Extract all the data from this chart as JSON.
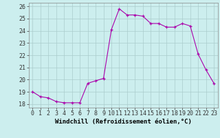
{
  "x": [
    0,
    1,
    2,
    3,
    4,
    5,
    6,
    7,
    8,
    9,
    10,
    11,
    12,
    13,
    14,
    15,
    16,
    17,
    18,
    19,
    20,
    21,
    22,
    23
  ],
  "y": [
    19.0,
    18.6,
    18.5,
    18.2,
    18.1,
    18.1,
    18.1,
    19.7,
    19.9,
    20.1,
    24.1,
    25.8,
    25.3,
    25.3,
    25.2,
    24.6,
    24.6,
    24.3,
    24.3,
    24.6,
    24.4,
    22.1,
    20.8,
    19.7
  ],
  "line_color": "#aa00aa",
  "marker_color": "#aa00aa",
  "bg_color": "#cceeee",
  "grid_color": "#aacccc",
  "xlabel": "Windchill (Refroidissement éolien,°C)",
  "ylabel_ticks": [
    18,
    19,
    20,
    21,
    22,
    23,
    24,
    25,
    26
  ],
  "xlim": [
    -0.5,
    23.5
  ],
  "ylim": [
    17.7,
    26.3
  ],
  "xlabel_fontsize": 6.5,
  "tick_fontsize": 6.0,
  "marker_size": 3.0,
  "line_width": 0.8
}
